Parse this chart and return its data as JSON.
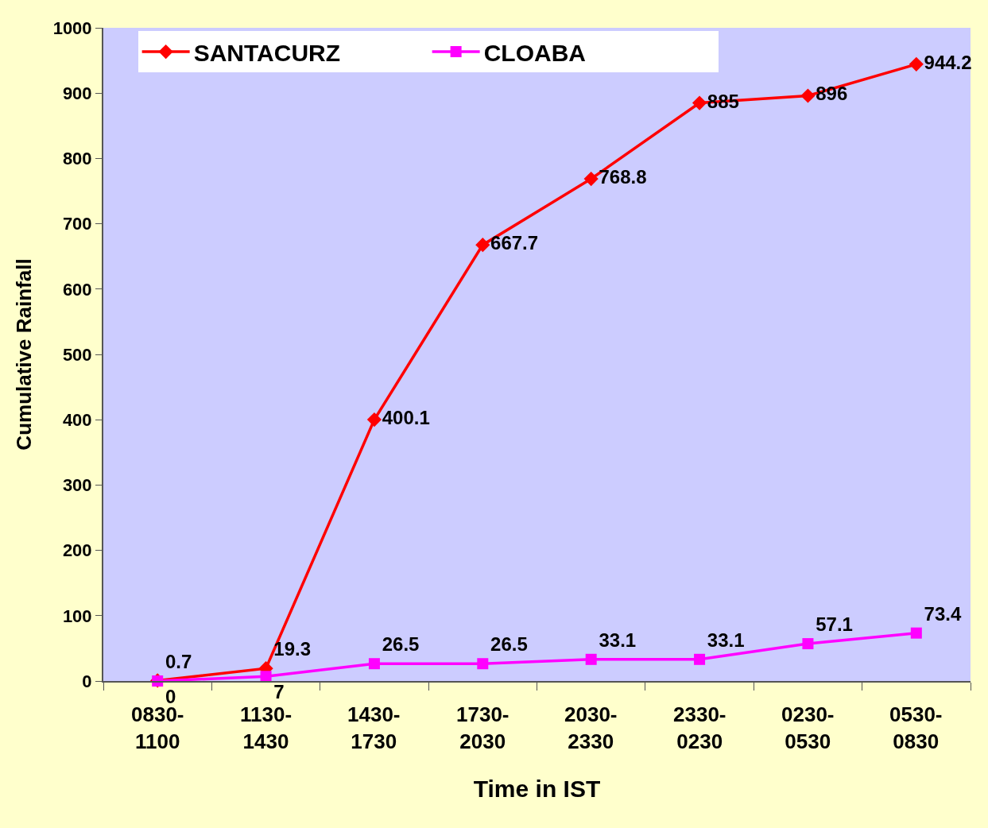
{
  "chart_data": {
    "type": "line",
    "xlabel": "Time in IST",
    "ylabel": "Cumulative Rainfall",
    "categories": [
      "0830-\n1100",
      "1130-\n1430",
      "1430-\n1730",
      "1730-\n2030",
      "2030-\n2330",
      "2330-\n0230",
      "0230-\n0530",
      "0530-\n0830"
    ],
    "series": [
      {
        "name": "SANTACURZ",
        "color": "#ff0000",
        "marker": "diamond",
        "values": [
          0.7,
          19.3,
          400.1,
          667.7,
          768.8,
          885,
          896,
          944.2
        ]
      },
      {
        "name": "CLOABA",
        "color": "#ff00ff",
        "marker": "square",
        "values": [
          0,
          7,
          26.5,
          26.5,
          33.1,
          33.1,
          57.1,
          73.4
        ]
      }
    ],
    "ylim": [
      0,
      1000
    ],
    "yticks": [
      0,
      100,
      200,
      300,
      400,
      500,
      600,
      700,
      800,
      900,
      1000
    ],
    "grid": false,
    "legend": "top left",
    "data_labels": true,
    "line_style": "solid"
  }
}
